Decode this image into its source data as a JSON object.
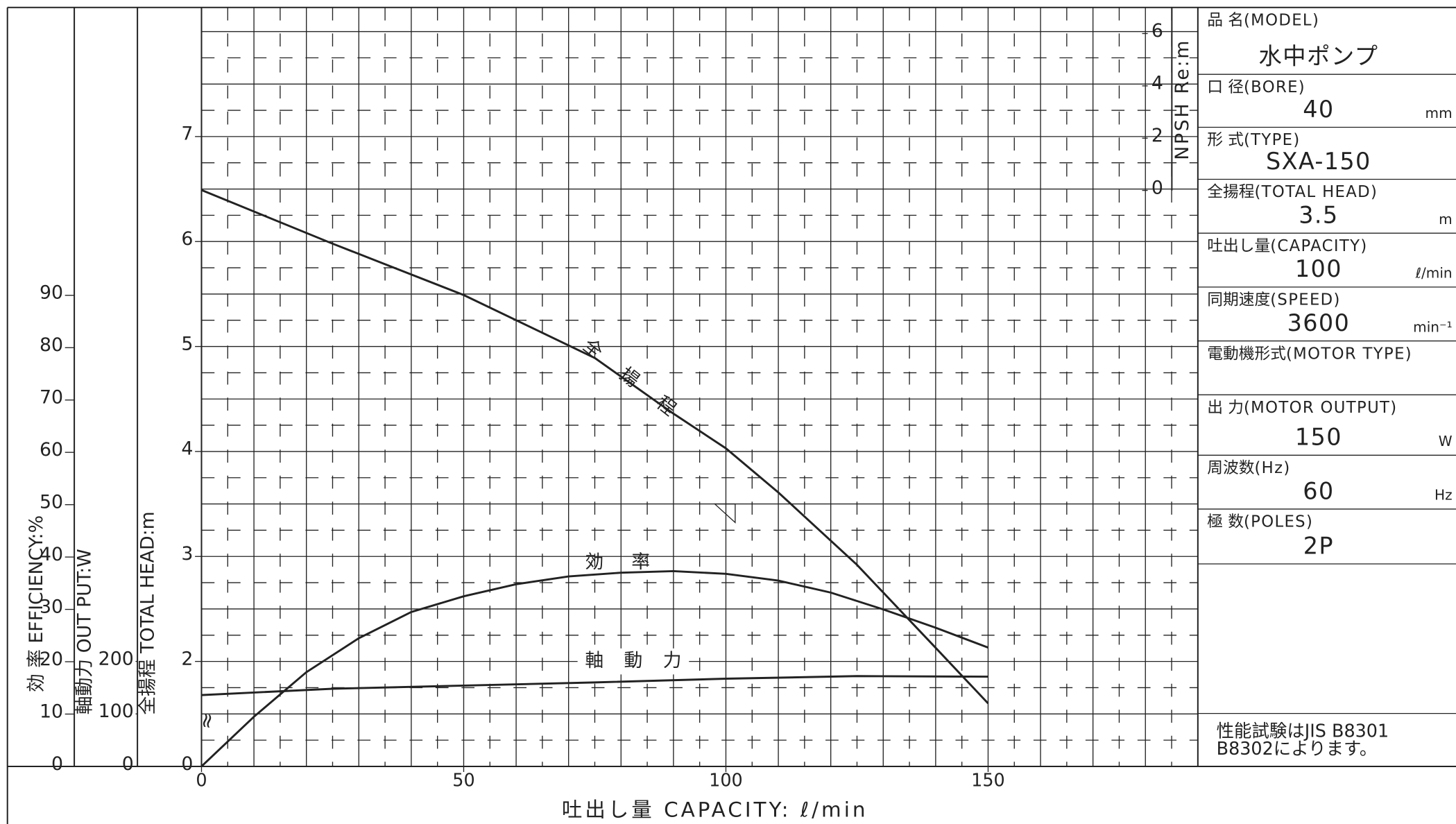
{
  "chart_data": {
    "type": "line",
    "x_label": "吐出し量 CAPACITY: ℓ/min",
    "xlim": [
      0,
      190
    ],
    "xticks": [
      0,
      50,
      100,
      150
    ],
    "grid": true,
    "axes": {
      "efficiency": {
        "label": "効 率 EFFICIENCY:%",
        "ylim": [
          0,
          145
        ],
        "yticks": [
          0,
          10,
          20,
          30,
          40,
          50,
          60,
          70,
          80,
          90
        ]
      },
      "output": {
        "label": "軸動力 OUT PUT:W",
        "ylim": [
          0,
          1446
        ],
        "yticks": [
          0,
          100,
          200
        ]
      },
      "head": {
        "label": "全揚程 TOTAL HEAD:m",
        "ylim": [
          0,
          8.23
        ],
        "yticks": [
          0,
          2,
          3,
          4,
          5,
          6,
          7
        ],
        "axis_break": true
      },
      "npsh": {
        "label": "NPSH Re:m",
        "ylim": [
          0,
          7
        ],
        "yticks": [
          0,
          2,
          4,
          6
        ]
      }
    },
    "series": [
      {
        "name": "全揚程",
        "axis": "head",
        "color": "#222222",
        "x": [
          0,
          25,
          50,
          75,
          90,
          100,
          110,
          125,
          140,
          150
        ],
        "values": [
          6.49,
          5.98,
          5.49,
          4.89,
          4.36,
          4.03,
          3.61,
          2.92,
          2.13,
          1.6
        ]
      },
      {
        "name": "効率",
        "axis": "efficiency",
        "color": "#222222",
        "x": [
          0,
          10,
          20,
          30,
          40,
          50,
          60,
          70,
          80,
          90,
          100,
          110,
          120,
          130,
          140,
          150
        ],
        "values": [
          0,
          9.5,
          18,
          24.5,
          29.5,
          32.5,
          34.8,
          36.3,
          37,
          37.3,
          36.8,
          35.5,
          33.2,
          30,
          26.5,
          22.7
        ]
      },
      {
        "name": "軸動力",
        "axis": "output",
        "color": "#222222",
        "x": [
          0,
          25,
          50,
          75,
          100,
          125,
          150
        ],
        "values": [
          136,
          148,
          154,
          160,
          167,
          172,
          171
        ]
      }
    ],
    "duty_point": {
      "x": 100,
      "y": 3.5
    }
  },
  "specs": [
    {
      "label": "品 名",
      "label_en": "(MODEL)",
      "value": "水中ポンプ"
    },
    {
      "label": "口 径",
      "label_en": "(BORE)",
      "value": "40",
      "unit": "mm"
    },
    {
      "label": "形 式",
      "label_en": "(TYPE)",
      "value": "SXA-150"
    },
    {
      "label": "全揚程",
      "label_en": "(TOTAL HEAD)",
      "value": "3.5",
      "unit": "m"
    },
    {
      "label": "吐出し量",
      "label_en": "(CAPACITY)",
      "value": "100",
      "unit": "ℓ/min"
    },
    {
      "label": "同期速度",
      "label_en": "(SPEED)",
      "value": "3600",
      "unit": "min⁻¹"
    },
    {
      "label": "電動機形式",
      "label_en": "(MOTOR TYPE)"
    },
    {
      "label": "出 力",
      "label_en": "(MOTOR OUTPUT)",
      "value": "150",
      "unit": "W"
    },
    {
      "label": "周波数",
      "label_en": "(Hz)",
      "value": "60",
      "unit": "Hz"
    },
    {
      "label": "極 数",
      "label_en": "(POLES)",
      "value": "2P"
    }
  ],
  "note": [
    "性能試験はJIS B8301",
    "B8302によります。"
  ]
}
